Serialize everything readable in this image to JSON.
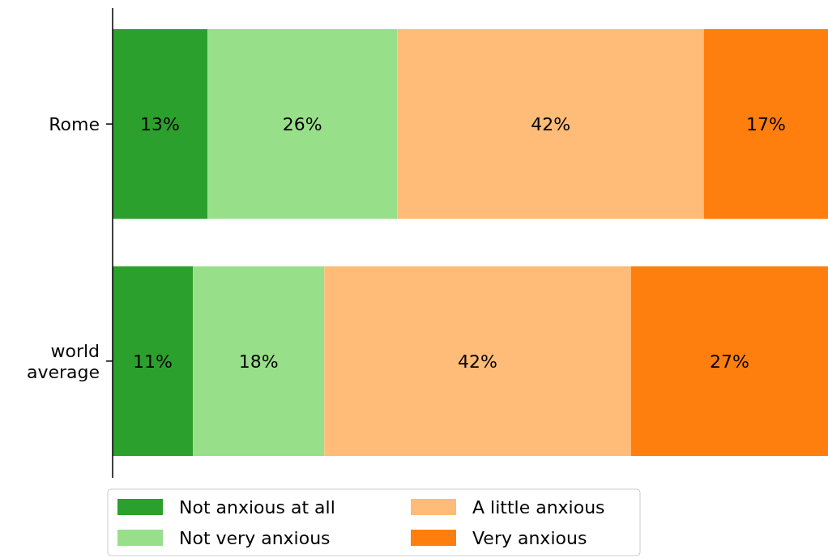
{
  "chart_data": {
    "type": "bar",
    "orientation": "horizontal",
    "stacked": true,
    "categories": [
      "Rome",
      "world average"
    ],
    "series": [
      {
        "name": "Not anxious at all",
        "color": "#2ca02c",
        "values": [
          13,
          11
        ],
        "value_labels": [
          "13%",
          "11%"
        ]
      },
      {
        "name": "Not very anxious",
        "color": "#98df8a",
        "values": [
          26,
          18
        ],
        "value_labels": [
          "26%",
          "18%"
        ]
      },
      {
        "name": "A little anxious",
        "color": "#ffbb78",
        "values": [
          42,
          42
        ],
        "value_labels": [
          "42%",
          "42%"
        ]
      },
      {
        "name": "Very anxious",
        "color": "#ff7f0e",
        "values": [
          17,
          27
        ],
        "value_labels": [
          "17%",
          "27%"
        ]
      }
    ],
    "legend": "bottom"
  }
}
